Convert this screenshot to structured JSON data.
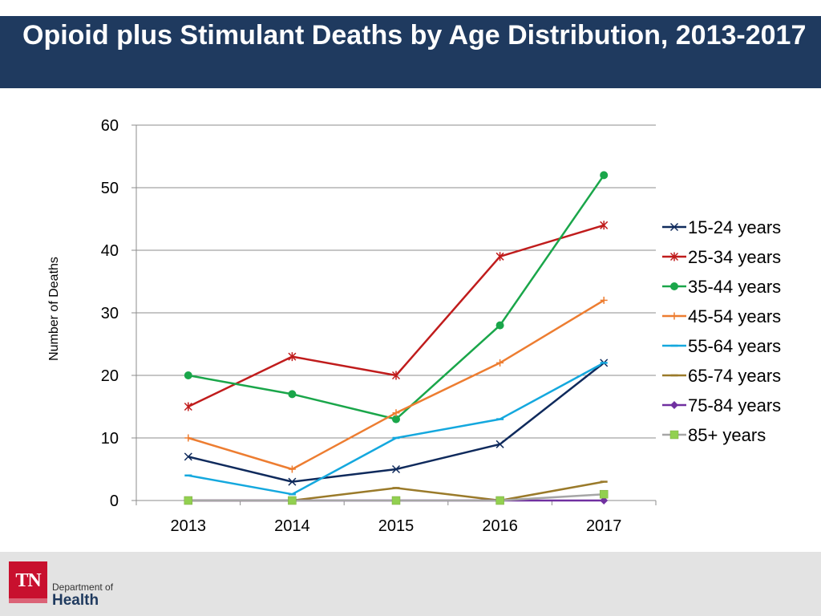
{
  "slide": {
    "title": "Opioid plus Stimulant Deaths by Age Distribution, 2013-2017"
  },
  "footer": {
    "logo_text": "TN",
    "dept_line1": "Department of",
    "dept_line2": "Health"
  },
  "colors": {
    "title_bar": "#1f3a5f"
  },
  "chart_data": {
    "type": "line",
    "title": "",
    "xlabel": "",
    "ylabel": "Number of Deaths",
    "ylim": [
      0,
      60
    ],
    "yticks": [
      0,
      10,
      20,
      30,
      40,
      50,
      60
    ],
    "grid": true,
    "legend": "right",
    "categories": [
      "2013",
      "2014",
      "2015",
      "2016",
      "2017"
    ],
    "series": [
      {
        "name": "15-24 years",
        "color": "#0f2a5c",
        "marker": "x",
        "values": [
          7,
          3,
          5,
          9,
          22
        ]
      },
      {
        "name": "25-34 years",
        "color": "#c01c1c",
        "marker": "star",
        "values": [
          15,
          23,
          20,
          39,
          44
        ]
      },
      {
        "name": "35-44 years",
        "color": "#1aa64a",
        "marker": "circle",
        "values": [
          20,
          17,
          13,
          28,
          52
        ]
      },
      {
        "name": "45-54 years",
        "color": "#ed7d31",
        "marker": "plus",
        "values": [
          10,
          5,
          14,
          22,
          32
        ]
      },
      {
        "name": "55-64 years",
        "color": "#14a8de",
        "marker": "dash",
        "values": [
          4,
          1,
          10,
          13,
          22
        ]
      },
      {
        "name": "65-74 years",
        "color": "#9a7a2a",
        "marker": "dash",
        "values": [
          0,
          0,
          2,
          0,
          3
        ]
      },
      {
        "name": "75-84 years",
        "color": "#7030a0",
        "marker": "diamond",
        "values": [
          0,
          0,
          0,
          0,
          0
        ]
      },
      {
        "name": "85+ years",
        "color": "#a6a6a6",
        "marker": "square",
        "marker_color": "#92d050",
        "values": [
          0,
          0,
          0,
          0,
          1
        ]
      }
    ]
  }
}
